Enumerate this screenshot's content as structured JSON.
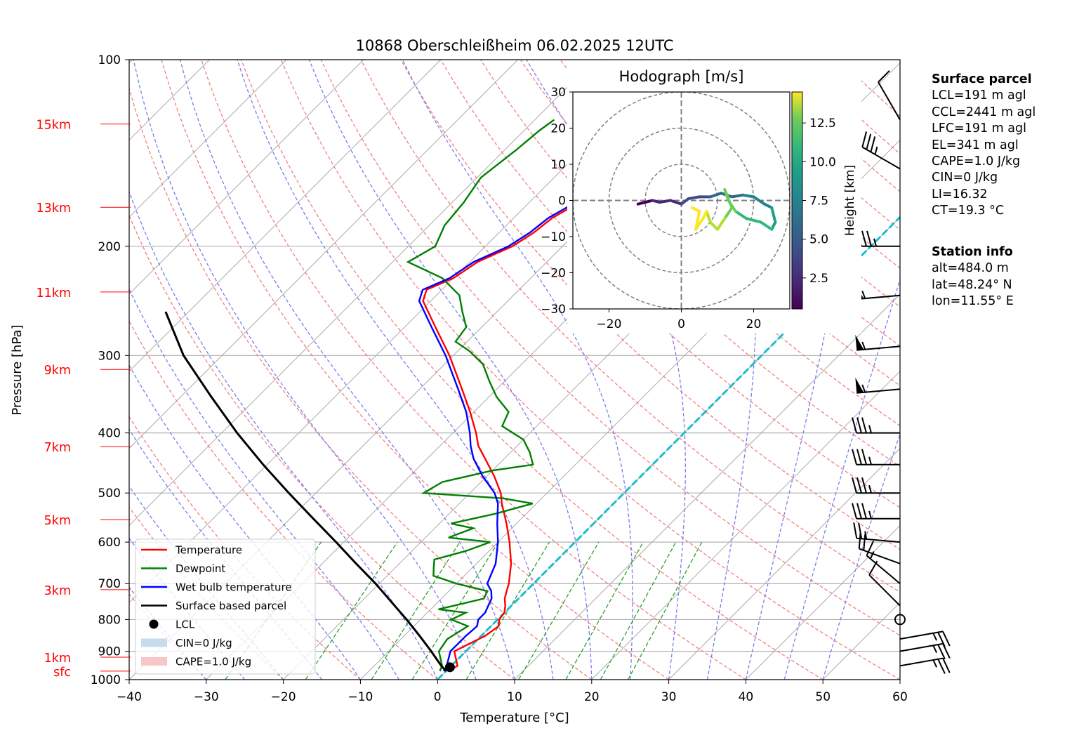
{
  "chart_data": {
    "type": "line",
    "title": "10868 Oberschleißheim 06.02.2025 12UTC",
    "xlabel": "Temperature [°C]",
    "ylabel": "Pressure [hPa]",
    "xlim": [
      -40,
      60
    ],
    "ylim": [
      1000,
      100
    ],
    "x_ticks": [
      "−40",
      "−30",
      "−20",
      "−10",
      "0",
      "10",
      "20",
      "30",
      "40",
      "50",
      "60"
    ],
    "y_ticks": [
      {
        "p": 100,
        "label": "100"
      },
      {
        "p": 200,
        "label": "200"
      },
      {
        "p": 300,
        "label": "300"
      },
      {
        "p": 400,
        "label": "400"
      },
      {
        "p": 500,
        "label": "500"
      },
      {
        "p": 600,
        "label": "600"
      },
      {
        "p": 700,
        "label": "700"
      },
      {
        "p": 800,
        "label": "800"
      },
      {
        "p": 900,
        "label": "900"
      },
      {
        "p": 1000,
        "label": "1000"
      }
    ],
    "height_labels": [
      {
        "p": 127,
        "label": "15km"
      },
      {
        "p": 173,
        "label": "13km"
      },
      {
        "p": 237,
        "label": "11km"
      },
      {
        "p": 316,
        "label": "9km"
      },
      {
        "p": 421,
        "label": "7km"
      },
      {
        "p": 552,
        "label": "5km"
      },
      {
        "p": 716,
        "label": "3km"
      },
      {
        "p": 920,
        "label": "1km"
      },
      {
        "p": 969,
        "label": "sfc"
      }
    ],
    "legend": [
      {
        "label": "Temperature",
        "color": "#ff0000",
        "kind": "line"
      },
      {
        "label": "Dewpoint",
        "color": "#008000",
        "kind": "line"
      },
      {
        "label": "Wet bulb temperature",
        "color": "#0000ff",
        "kind": "line"
      },
      {
        "label": "Surface based parcel",
        "color": "#000000",
        "kind": "line"
      },
      {
        "label": "LCL",
        "color": "#000000",
        "kind": "dot"
      },
      {
        "label": "CIN=0 J/kg",
        "color": "#c6dbec",
        "kind": "patch"
      },
      {
        "label": "CAPE=1.0 J/kg",
        "color": "#f6c6c8",
        "kind": "patch"
      }
    ],
    "legend_position": "lower-left",
    "series": [
      {
        "name": "Temperature",
        "color": "#ff0000",
        "points": [
          [
            969,
            0.3
          ],
          [
            950,
            0.8
          ],
          [
            900,
            -1.5
          ],
          [
            850,
            0.5
          ],
          [
            820,
            1.0
          ],
          [
            800,
            0.2
          ],
          [
            780,
            0.0
          ],
          [
            760,
            -0.8
          ],
          [
            740,
            -1.8
          ],
          [
            720,
            -2.5
          ],
          [
            700,
            -3.2
          ],
          [
            650,
            -5.5
          ],
          [
            600,
            -8.5
          ],
          [
            560,
            -11.3
          ],
          [
            520,
            -14.5
          ],
          [
            500,
            -16.0
          ],
          [
            470,
            -19.0
          ],
          [
            440,
            -22.5
          ],
          [
            420,
            -25.0
          ],
          [
            400,
            -27.0
          ],
          [
            370,
            -30.5
          ],
          [
            340,
            -34.5
          ],
          [
            300,
            -40.5
          ],
          [
            270,
            -46.0
          ],
          [
            245,
            -51.0
          ],
          [
            235,
            -52.0
          ],
          [
            225,
            -50.0
          ],
          [
            212,
            -49.0
          ],
          [
            200,
            -46.5
          ],
          [
            190,
            -45.5
          ],
          [
            180,
            -45.0
          ],
          [
            170,
            -43.5
          ],
          [
            160,
            -41.5
          ],
          [
            150,
            -40.0
          ],
          [
            140,
            -38.5
          ],
          [
            130,
            -36.5
          ],
          [
            125,
            -36.0
          ]
        ]
      },
      {
        "name": "Dewpoint",
        "color": "#008000",
        "points": [
          [
            969,
            -0.8
          ],
          [
            950,
            -1.2
          ],
          [
            900,
            -3.5
          ],
          [
            860,
            -4.0
          ],
          [
            820,
            -3.0
          ],
          [
            800,
            -6.0
          ],
          [
            780,
            -5.0
          ],
          [
            770,
            -9.0
          ],
          [
            760,
            -7.5
          ],
          [
            740,
            -4.5
          ],
          [
            720,
            -5.0
          ],
          [
            700,
            -10.0
          ],
          [
            680,
            -14.0
          ],
          [
            660,
            -15.0
          ],
          [
            640,
            -16.0
          ],
          [
            620,
            -13.0
          ],
          [
            600,
            -11.0
          ],
          [
            590,
            -17.0
          ],
          [
            570,
            -15.0
          ],
          [
            560,
            -18.5
          ],
          [
            540,
            -14.0
          ],
          [
            520,
            -10.5
          ],
          [
            510,
            -15.0
          ],
          [
            500,
            -26.0
          ],
          [
            480,
            -25.0
          ],
          [
            460,
            -20.0
          ],
          [
            450,
            -15.5
          ],
          [
            430,
            -17.5
          ],
          [
            410,
            -20.0
          ],
          [
            390,
            -24.5
          ],
          [
            370,
            -25.5
          ],
          [
            350,
            -29.0
          ],
          [
            330,
            -32.0
          ],
          [
            310,
            -35.0
          ],
          [
            295,
            -38.5
          ],
          [
            285,
            -41.5
          ],
          [
            270,
            -42.0
          ],
          [
            255,
            -44.5
          ],
          [
            240,
            -47.0
          ],
          [
            225,
            -51.5
          ],
          [
            212,
            -58.0
          ],
          [
            200,
            -56.5
          ],
          [
            185,
            -58.0
          ],
          [
            170,
            -58.5
          ],
          [
            155,
            -59.5
          ],
          [
            140,
            -58.5
          ],
          [
            130,
            -58.0
          ],
          [
            125,
            -57.5
          ]
        ]
      },
      {
        "name": "Wet bulb temperature",
        "color": "#0000ff",
        "points": [
          [
            969,
            -0.3
          ],
          [
            950,
            -0.6
          ],
          [
            900,
            -2.0
          ],
          [
            850,
            -2.0
          ],
          [
            820,
            -1.8
          ],
          [
            800,
            -2.5
          ],
          [
            780,
            -2.5
          ],
          [
            760,
            -3.0
          ],
          [
            740,
            -3.5
          ],
          [
            720,
            -4.5
          ],
          [
            700,
            -6.0
          ],
          [
            650,
            -7.5
          ],
          [
            600,
            -10.0
          ],
          [
            560,
            -12.5
          ],
          [
            520,
            -15.0
          ],
          [
            500,
            -16.8
          ],
          [
            470,
            -20.5
          ],
          [
            440,
            -24.0
          ],
          [
            420,
            -26.0
          ],
          [
            400,
            -27.8
          ],
          [
            370,
            -31.0
          ],
          [
            340,
            -35.0
          ],
          [
            300,
            -41.0
          ],
          [
            270,
            -46.5
          ],
          [
            245,
            -51.5
          ],
          [
            235,
            -52.5
          ],
          [
            225,
            -50.5
          ],
          [
            212,
            -49.5
          ],
          [
            200,
            -47.0
          ],
          [
            190,
            -46.0
          ],
          [
            180,
            -45.5
          ],
          [
            170,
            -44.0
          ],
          [
            160,
            -42.0
          ],
          [
            150,
            -40.5
          ],
          [
            140,
            -39.0
          ],
          [
            130,
            -37.0
          ],
          [
            125,
            -36.3
          ]
        ]
      },
      {
        "name": "Surface based parcel",
        "color": "#000000",
        "points": [
          [
            969,
            0.0
          ],
          [
            950,
            -1.3
          ],
          [
            900,
            -4.5
          ],
          [
            850,
            -8.0
          ],
          [
            800,
            -11.8
          ],
          [
            750,
            -16.0
          ],
          [
            700,
            -20.5
          ],
          [
            650,
            -25.6
          ],
          [
            600,
            -31.0
          ],
          [
            550,
            -37.0
          ],
          [
            500,
            -43.5
          ],
          [
            450,
            -50.5
          ],
          [
            400,
            -58.0
          ],
          [
            350,
            -66.0
          ],
          [
            300,
            -75.0
          ],
          [
            255,
            -83.0
          ]
        ]
      }
    ],
    "lcl": {
      "p": 955,
      "t": 0.0
    },
    "hodograph": {
      "title": "Hodograph [m/s]",
      "xlim": [
        -30,
        30
      ],
      "ylim": [
        -30,
        30
      ],
      "ticks": [
        "−30",
        "−20",
        "−10",
        "0",
        "10",
        "20",
        "30"
      ],
      "x_ticks": [
        "−20",
        "0",
        "20"
      ],
      "rings": [
        10,
        20,
        30
      ],
      "colorbar_label": "Height [km]",
      "colorbar_ticks": [
        "2.5",
        "5.0",
        "7.5",
        "10.0",
        "12.5"
      ],
      "colorbar_range": [
        0.5,
        14.5
      ],
      "points": [
        [
          -12,
          -1,
          0.5
        ],
        [
          -10,
          -0.5,
          1.0
        ],
        [
          -8,
          0,
          1.5
        ],
        [
          -6,
          -0.5,
          2.0
        ],
        [
          -3,
          0,
          2.5
        ],
        [
          0,
          -1,
          3.0
        ],
        [
          2,
          0.5,
          3.5
        ],
        [
          5,
          1,
          4.0
        ],
        [
          8,
          1,
          4.5
        ],
        [
          11,
          2,
          5.0
        ],
        [
          14,
          1,
          5.5
        ],
        [
          17,
          1.5,
          6.0
        ],
        [
          20,
          1,
          6.5
        ],
        [
          23,
          -1,
          7.0
        ],
        [
          25,
          -2,
          7.5
        ],
        [
          26,
          -6,
          8.0
        ],
        [
          25,
          -8,
          8.5
        ],
        [
          22,
          -6,
          9.0
        ],
        [
          18,
          -5,
          9.5
        ],
        [
          15,
          -3,
          10.0
        ],
        [
          13,
          0,
          10.5
        ],
        [
          12,
          3,
          11.0
        ],
        [
          14,
          -2,
          11.2
        ],
        [
          12,
          -5,
          11.5
        ],
        [
          10,
          -8,
          12.0
        ],
        [
          8,
          -6,
          12.5
        ],
        [
          7,
          -3,
          13.0
        ],
        [
          6,
          -5,
          13.3
        ],
        [
          4,
          -8,
          13.7
        ],
        [
          5,
          -3,
          14.0
        ],
        [
          3,
          -2,
          14.3
        ]
      ]
    },
    "wind_barbs": [
      {
        "p": 125,
        "dir": 330,
        "kt": 10
      },
      {
        "p": 150,
        "dir": 300,
        "kt": 35
      },
      {
        "p": 200,
        "dir": 270,
        "kt": 45
      },
      {
        "p": 240,
        "dir": 265,
        "kt": 55
      },
      {
        "p": 290,
        "dir": 265,
        "kt": 55
      },
      {
        "p": 340,
        "dir": 265,
        "kt": 55
      },
      {
        "p": 400,
        "dir": 270,
        "kt": 35
      },
      {
        "p": 450,
        "dir": 270,
        "kt": 35
      },
      {
        "p": 500,
        "dir": 270,
        "kt": 35
      },
      {
        "p": 550,
        "dir": 270,
        "kt": 35
      },
      {
        "p": 600,
        "dir": 275,
        "kt": 25
      },
      {
        "p": 650,
        "dir": 290,
        "kt": 20
      },
      {
        "p": 700,
        "dir": 310,
        "kt": 15
      },
      {
        "p": 760,
        "dir": 315,
        "kt": 10
      },
      {
        "p": 800,
        "dir": 0,
        "kt": 0
      },
      {
        "p": 860,
        "dir": 80,
        "kt": 25
      },
      {
        "p": 900,
        "dir": 80,
        "kt": 25
      },
      {
        "p": 950,
        "dir": 80,
        "kt": 25
      }
    ]
  },
  "surface_parcel": {
    "title": "Surface parcel",
    "lines": [
      "LCL=191 m agl",
      "CCL=2441 m agl",
      "LFC=191 m agl",
      "EL=341 m agl",
      "CAPE=1.0 J/kg",
      "CIN=0 J/kg",
      "LI=16.32",
      "CT=19.3 °C"
    ]
  },
  "station_info": {
    "title": "Station info",
    "lines": [
      "alt=484.0 m",
      "lat=48.24° N",
      "lon=11.55° E"
    ]
  }
}
